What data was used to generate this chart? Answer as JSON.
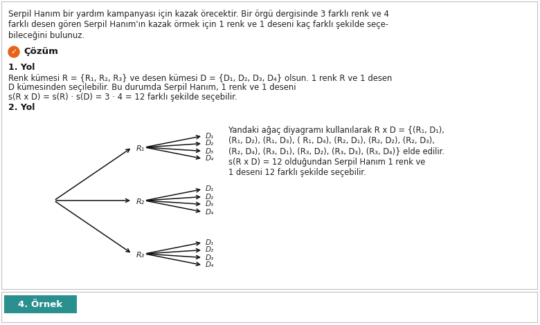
{
  "bg_color": "#ffffff",
  "border_color": "#c0c0c0",
  "teal_color": "#2a9090",
  "text_color": "#222222",
  "dark_text": "#111111",
  "para_line1": "Serpil Hanım bir yardım kampanyası için kazak örecektir. Bir örgü dergisinde 3 farklı renk ve 4",
  "para_line2": "farklı desen gören Serpil Hanım'ın kazak örmek için 1 renk ve 1 deseni kaç farklı şekilde seçe-",
  "para_line3": "bileceğini bulunuz.",
  "cozum_label": "Çözüm",
  "yol1_title": "1. Yol",
  "yol1_line1": "Renk kümesi R = {R₁, R₂, R₃} ve desen kümesi D = {D₁, D₂, D₃, D₄} olsun. 1 renk R ve 1 desen",
  "yol1_line2": "D kümesinden seçilebilir. Bu durumda Serpil Hanım, 1 renk ve 1 deseni",
  "yol1_line3": "s(R x D) = s(R) · s(D) = 3 · 4 = 12 farklı şekilde seçebilir.",
  "yol2_title": "2. Yol",
  "right_text_line1": "Yandaki ağaç diyagramı kullanılarak R x D = {(R₁, D₁),",
  "right_text_line2": "(R₁, D₂), (R₁, D₃), ( R₁, D₄), (R₂, D₁), (R₂, D₂), (R₂, D₃),",
  "right_text_line3": "(R₂, D₄), (R₃, D₁), (R₃, D₂), (R₃, D₃), (R₃, D₄)} elde edilir.",
  "right_text_line4": "s(R x D) = 12 olduğundan Serpil Hanım 1 renk ve",
  "right_text_line5": "1 deseni 12 farklı şekilde seçebilir.",
  "bottom_label": "4. Örnek",
  "bottom_teal": "#2a8f8f",
  "orange_color": "#e8621a"
}
